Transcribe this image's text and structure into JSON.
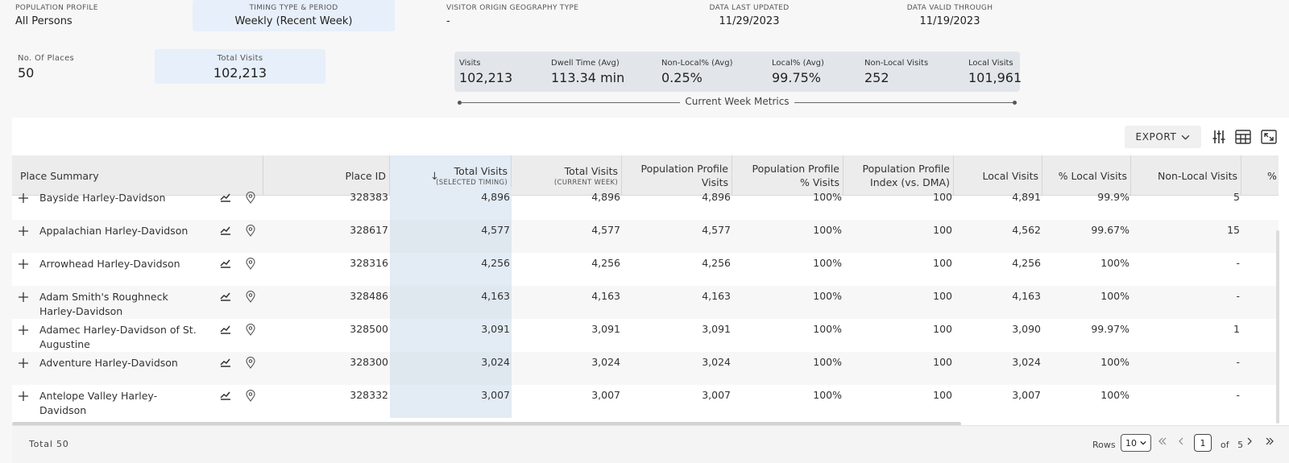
{
  "header": {
    "population_profile": {
      "label": "POPULATION PROFILE",
      "value": "All Persons"
    },
    "timing": {
      "label": "TIMING TYPE & PERIOD",
      "value": "Weekly (Recent Week)"
    },
    "geography": {
      "label": "VISITOR ORIGIN GEOGRAPHY TYPE",
      "value": "-"
    },
    "last_updated": {
      "label": "DATA LAST UPDATED",
      "value": "11/29/2023"
    },
    "valid_through": {
      "label": "DATA VALID THROUGH",
      "value": "11/19/2023"
    }
  },
  "summary": {
    "places": {
      "label": "No. Of Places",
      "value": "50"
    },
    "total_visits": {
      "label": "Total Visits",
      "value": "102,213"
    }
  },
  "metrics": {
    "caption": "Current Week Metrics",
    "items": [
      {
        "label": "Visits",
        "value": "102,213"
      },
      {
        "label": "Dwell Time (Avg)",
        "value": "113.34 min"
      },
      {
        "label": "Non-Local% (Avg)",
        "value": "0.25%"
      },
      {
        "label": "Local% (Avg)",
        "value": "99.75%"
      },
      {
        "label": "Non-Local Visits",
        "value": "252"
      },
      {
        "label": "Local Visits",
        "value": "101,961"
      }
    ]
  },
  "toolbar": {
    "export_label": "EXPORT"
  },
  "table": {
    "columns": {
      "place_summary": "Place Summary",
      "place_id": "Place ID",
      "total_visits_sel": {
        "main": "Total Visits",
        "sub": "(SELECTED TIMING)"
      },
      "total_visits_cur": {
        "main": "Total Visits",
        "sub": "(CURRENT WEEK)"
      },
      "pp_visits": {
        "l1": "Population Profile",
        "l2": "Visits"
      },
      "pp_pct": {
        "l1": "Population Profile",
        "l2": "% Visits"
      },
      "pp_index": {
        "l1": "Population Profile",
        "l2": "Index (vs. DMA)"
      },
      "local_visits": "Local Visits",
      "pct_local": "% Local Visits",
      "nonlocal_visits": "Non-Local Visits",
      "pct_nonlocal": "% Nc"
    },
    "rows": [
      {
        "name": "Bayside Harley-Davidson",
        "id": "328383",
        "tv_sel": "4,896",
        "tv_cur": "4,896",
        "pp_visits": "4,896",
        "pp_pct": "100%",
        "pp_index": "100",
        "local": "4,891",
        "pct_local": "99.9%",
        "nonlocal": "5"
      },
      {
        "name": "Appalachian Harley-Davidson",
        "id": "328617",
        "tv_sel": "4,577",
        "tv_cur": "4,577",
        "pp_visits": "4,577",
        "pp_pct": "100%",
        "pp_index": "100",
        "local": "4,562",
        "pct_local": "99.67%",
        "nonlocal": "15"
      },
      {
        "name": "Arrowhead Harley-Davidson",
        "id": "328316",
        "tv_sel": "4,256",
        "tv_cur": "4,256",
        "pp_visits": "4,256",
        "pp_pct": "100%",
        "pp_index": "100",
        "local": "4,256",
        "pct_local": "100%",
        "nonlocal": "-"
      },
      {
        "name": "Adam Smith's Roughneck Harley-Davidson",
        "id": "328486",
        "tv_sel": "4,163",
        "tv_cur": "4,163",
        "pp_visits": "4,163",
        "pp_pct": "100%",
        "pp_index": "100",
        "local": "4,163",
        "pct_local": "100%",
        "nonlocal": "-"
      },
      {
        "name": "Adamec Harley-Davidson of St. Augustine",
        "id": "328500",
        "tv_sel": "3,091",
        "tv_cur": "3,091",
        "pp_visits": "3,091",
        "pp_pct": "100%",
        "pp_index": "100",
        "local": "3,090",
        "pct_local": "99.97%",
        "nonlocal": "1"
      },
      {
        "name": "Adventure Harley-Davidson",
        "id": "328300",
        "tv_sel": "3,024",
        "tv_cur": "3,024",
        "pp_visits": "3,024",
        "pp_pct": "100%",
        "pp_index": "100",
        "local": "3,024",
        "pct_local": "100%",
        "nonlocal": "-"
      },
      {
        "name": "Antelope Valley Harley-Davidson",
        "id": "328332",
        "tv_sel": "3,007",
        "tv_cur": "3,007",
        "pp_visits": "3,007",
        "pp_pct": "100%",
        "pp_index": "100",
        "local": "3,007",
        "pct_local": "100%",
        "nonlocal": "-"
      }
    ]
  },
  "footer": {
    "total": "Total 50",
    "rows_label": "Rows",
    "rows_value": "10",
    "page": "1",
    "of_label": "of",
    "pages": "5"
  }
}
